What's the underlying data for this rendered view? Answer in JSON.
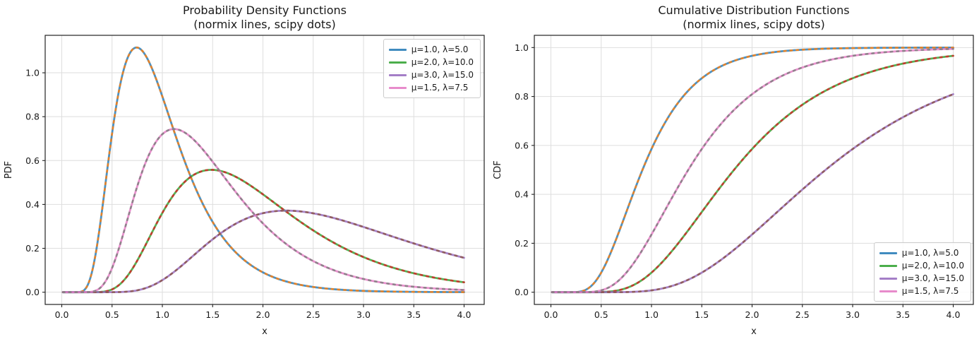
{
  "figure": {
    "background": "#ffffff",
    "colors": {
      "grid": "#dedede",
      "spine": "#222222",
      "text": "#1a1a1a",
      "tick": "#222222"
    }
  },
  "chart_data": [
    {
      "type": "line",
      "title": "Probability Density Functions",
      "subtitle": "(normix lines, scipy dots)",
      "xlabel": "x",
      "ylabel": "PDF",
      "value": "pdf",
      "distribution": "inverse_gaussian",
      "grid": true,
      "legend_position": "upper-right",
      "xlim": [
        -0.165,
        4.2
      ],
      "ylim": [
        -0.0558,
        1.1708
      ],
      "xticks": [
        0.0,
        0.5,
        1.0,
        1.5,
        2.0,
        2.5,
        3.0,
        3.5,
        4.0
      ],
      "yticks": [
        0.0,
        0.2,
        0.4,
        0.6,
        0.8,
        1.0
      ],
      "x_sample_range": [
        0.01,
        4.0
      ],
      "series": [
        {
          "label": "μ=1.0, λ=5.0",
          "mu": 1.0,
          "lambda": 5.0,
          "line_color": "#1f77b4",
          "dot_color": "#ff7f0e",
          "peak_x": 0.74,
          "peak_y": 1.12
        },
        {
          "label": "μ=2.0, λ=10.0",
          "mu": 2.0,
          "lambda": 10.0,
          "line_color": "#2ca02c",
          "dot_color": "#d62728",
          "peak_x": 1.49,
          "peak_y": 0.56
        },
        {
          "label": "μ=3.0, λ=15.0",
          "mu": 3.0,
          "lambda": 15.0,
          "line_color": "#9467bd",
          "dot_color": "#8c564b",
          "peak_x": 2.23,
          "peak_y": 0.37
        },
        {
          "label": "μ=1.5, λ=7.5",
          "mu": 1.5,
          "lambda": 7.5,
          "line_color": "#e377c2",
          "dot_color": "#7f7f7f",
          "peak_x": 1.12,
          "peak_y": 0.74
        }
      ]
    },
    {
      "type": "line",
      "title": "Cumulative Distribution Functions",
      "subtitle": "(normix lines, scipy dots)",
      "xlabel": "x",
      "ylabel": "CDF",
      "value": "cdf",
      "distribution": "inverse_gaussian",
      "grid": true,
      "legend_position": "lower-right",
      "xlim": [
        -0.165,
        4.2
      ],
      "ylim": [
        -0.05,
        1.05
      ],
      "xticks": [
        0.0,
        0.5,
        1.0,
        1.5,
        2.0,
        2.5,
        3.0,
        3.5,
        4.0
      ],
      "yticks": [
        0.0,
        0.2,
        0.4,
        0.6,
        0.8,
        1.0
      ],
      "x_sample_range": [
        0.01,
        4.0
      ],
      "series": [
        {
          "label": "μ=1.0, λ=5.0",
          "mu": 1.0,
          "lambda": 5.0,
          "line_color": "#1f77b4",
          "dot_color": "#ff7f0e",
          "value_at_x4": 1.0
        },
        {
          "label": "μ=2.0, λ=10.0",
          "mu": 2.0,
          "lambda": 10.0,
          "line_color": "#2ca02c",
          "dot_color": "#d62728",
          "value_at_x4": 0.97
        },
        {
          "label": "μ=3.0, λ=15.0",
          "mu": 3.0,
          "lambda": 15.0,
          "line_color": "#9467bd",
          "dot_color": "#8c564b",
          "value_at_x4": 0.81
        },
        {
          "label": "μ=1.5, λ=7.5",
          "mu": 1.5,
          "lambda": 7.5,
          "line_color": "#e377c2",
          "dot_color": "#7f7f7f",
          "value_at_x4": 0.99
        }
      ]
    }
  ]
}
